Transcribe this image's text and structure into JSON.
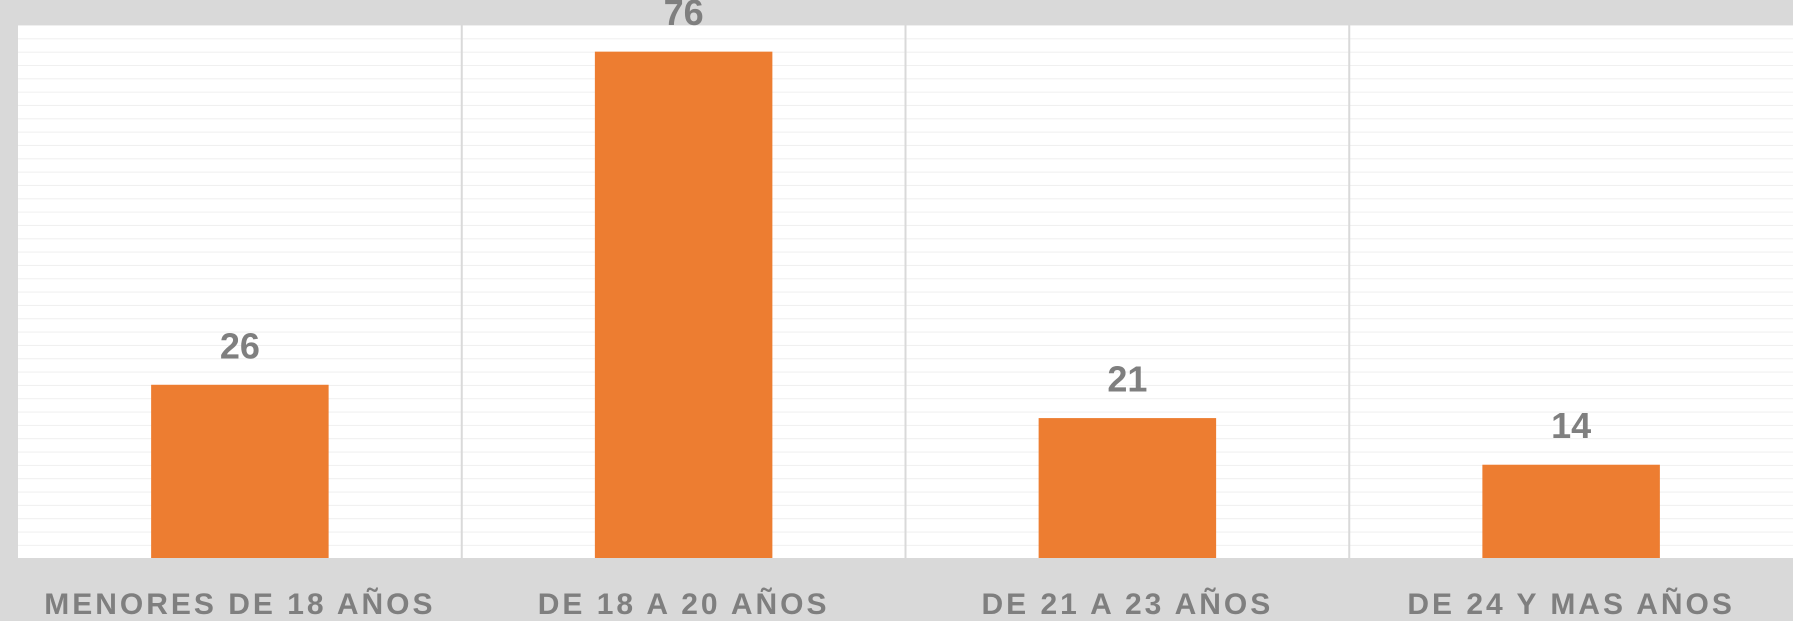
{
  "chart_data": {
    "type": "bar",
    "categories": [
      "MENORES DE 18 AÑOS",
      "DE 18 A 20 AÑOS",
      "DE 21 A 23 AÑOS",
      "DE 24 Y MAS AÑOS"
    ],
    "values": [
      26,
      76,
      21,
      14
    ],
    "color": "#ed7d31",
    "ylim": [
      0,
      80
    ]
  }
}
